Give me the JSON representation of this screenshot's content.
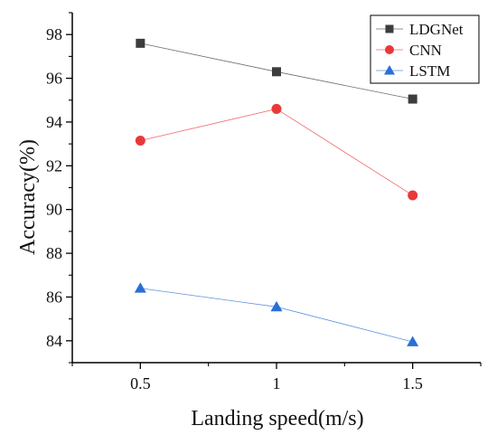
{
  "chart_data": {
    "type": "line",
    "xlabel": "Landing speed(m/s)",
    "ylabel": "Accuracy(%)",
    "x": [
      0.5,
      1,
      1.5
    ],
    "x_tick_labels": [
      "0.5",
      "1",
      "1.5"
    ],
    "xlim": [
      0.25,
      1.75
    ],
    "ylim": [
      83,
      99
    ],
    "y_ticks": [
      84,
      86,
      88,
      90,
      92,
      94,
      96,
      98
    ],
    "grid": false,
    "legend_position": "top-right",
    "series": [
      {
        "name": "LDGNet",
        "values": [
          97.6,
          96.3,
          95.05
        ],
        "color": "#3d3d3d",
        "marker": "square"
      },
      {
        "name": "CNN",
        "values": [
          93.15,
          94.6,
          90.65
        ],
        "color": "#e8393a",
        "marker": "circle"
      },
      {
        "name": "LSTM",
        "values": [
          86.4,
          85.55,
          83.95
        ],
        "color": "#2a6fd6",
        "marker": "triangle"
      }
    ]
  }
}
